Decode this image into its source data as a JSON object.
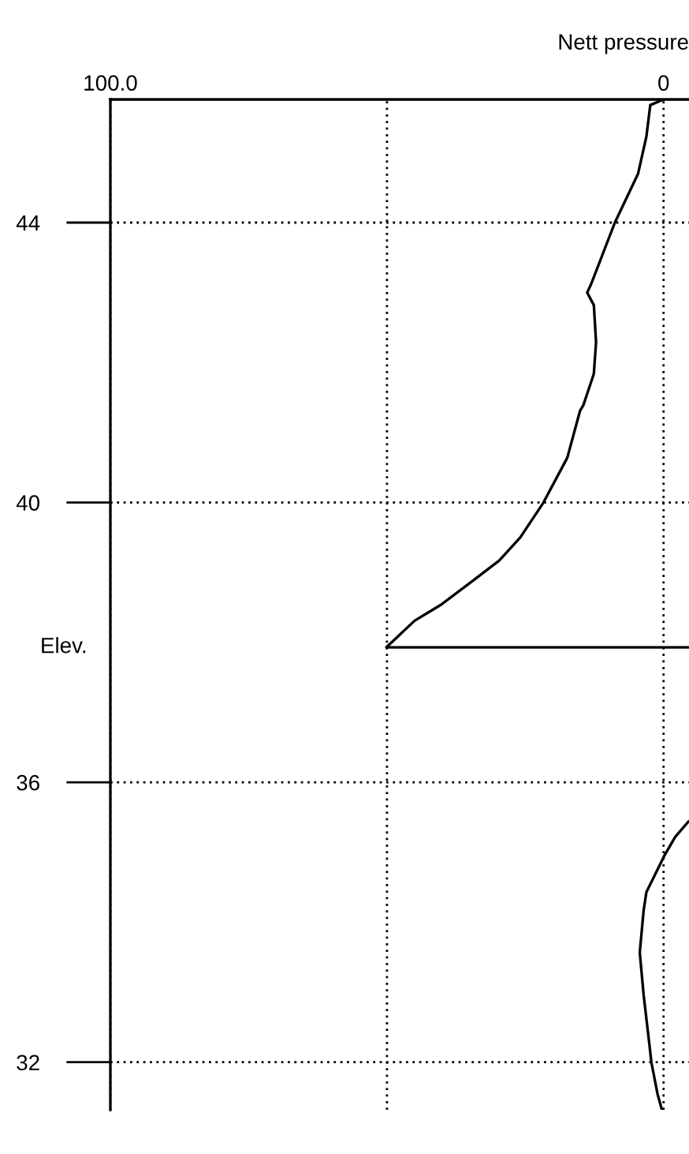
{
  "chart_data": {
    "type": "line",
    "xlabel": "Nett pressure",
    "ylabel": "Elev.",
    "xlim": [
      100,
      -4.6
    ],
    "xticks": [
      {
        "value": 100,
        "label": "100.0"
      },
      {
        "value": 50,
        "label": null
      },
      0
    ],
    "ylim": [
      31.32,
      45.76
    ],
    "yticks": [
      32,
      36,
      40,
      44
    ],
    "grid": true,
    "marker": "none",
    "line_style": "solid",
    "legend": false,
    "series": [
      {
        "color": "#000000",
        "x": [
          0,
          2.4,
          3.1,
          4.6,
          8.8,
          13.1,
          13.8,
          12.6,
          12.2,
          12.6,
          14.5,
          15.1,
          17.4,
          21.7,
          25.9,
          29.7,
          34.5,
          40.2,
          45.0,
          50.1,
          -4.6,
          null,
          -4.5,
          -2.1,
          -0.2,
          3.1,
          3.6,
          4.3,
          3.6,
          2.6,
          2.2,
          1.1,
          0.3
        ],
        "values": [
          45.76,
          45.68,
          45.23,
          44.7,
          44.0,
          43.12,
          43.0,
          42.82,
          42.29,
          41.84,
          41.39,
          41.31,
          40.64,
          40.0,
          39.5,
          39.17,
          38.88,
          38.54,
          38.31,
          37.93,
          37.93,
          null,
          35.44,
          35.22,
          34.96,
          34.43,
          34.17,
          33.57,
          32.96,
          32.28,
          32.0,
          31.55,
          31.32
        ]
      }
    ]
  }
}
